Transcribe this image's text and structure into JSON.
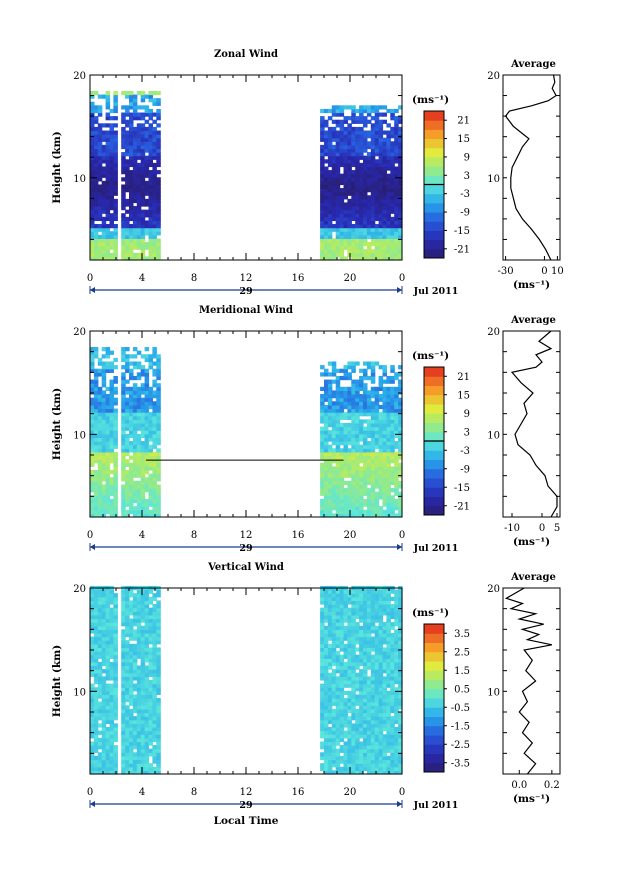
{
  "chart_data": [
    {
      "type": "heatmap",
      "title": "Zonal Wind",
      "ylabel": "Height (km)",
      "xlim": [
        0,
        24
      ],
      "ylim": [
        2,
        20
      ],
      "x_ticks": [
        "0",
        "4",
        "8",
        "12",
        "16",
        "20",
        "0"
      ],
      "y_ticks": [
        "20",
        "10"
      ],
      "date_day": "29",
      "date_month": "Jul 2011",
      "colorbar": {
        "unit": "(ms⁻¹)",
        "ticks": [
          "21",
          "15",
          "9",
          "3",
          "-3",
          "-9",
          "-15",
          "-21"
        ],
        "range": [
          -24,
          24
        ],
        "zero_line": true
      },
      "data_gaps_hours": [
        [
          2.2,
          2.55
        ],
        [
          5.3,
          17.6
        ]
      ],
      "profile": {
        "title": "Average",
        "xlabel": "(ms⁻¹)",
        "x_ticks": [
          "-30",
          "0",
          "10"
        ],
        "xlim": [
          -32,
          12
        ],
        "y_ticks": [
          "20",
          "10"
        ],
        "points": [
          [
            5,
            2
          ],
          [
            1,
            3
          ],
          [
            -4,
            4
          ],
          [
            -10,
            5
          ],
          [
            -17,
            6
          ],
          [
            -22,
            7
          ],
          [
            -24,
            8
          ],
          [
            -26,
            9
          ],
          [
            -26,
            10
          ],
          [
            -25,
            11
          ],
          [
            -21,
            12
          ],
          [
            -17,
            13
          ],
          [
            -12,
            13.8
          ],
          [
            -16,
            14.2
          ],
          [
            -24,
            15
          ],
          [
            -30,
            16
          ],
          [
            -27,
            16.5
          ],
          [
            -10,
            17
          ],
          [
            3,
            17.5
          ],
          [
            9,
            18
          ],
          [
            6,
            18.7
          ],
          [
            8,
            19.3
          ],
          [
            7,
            20
          ]
        ]
      }
    },
    {
      "type": "heatmap",
      "title": "Meridional Wind",
      "ylabel": "Height (km)",
      "xlim": [
        0,
        24
      ],
      "ylim": [
        2,
        20
      ],
      "x_ticks": [
        "0",
        "4",
        "8",
        "12",
        "16",
        "20",
        "0"
      ],
      "y_ticks": [
        "20",
        "10"
      ],
      "date_day": "29",
      "date_month": "Jul 2011",
      "colorbar": {
        "unit": "(ms⁻¹)",
        "ticks": [
          "21",
          "15",
          "9",
          "3",
          "-3",
          "-9",
          "-15",
          "-21"
        ],
        "range": [
          -24,
          24
        ],
        "zero_line": true
      },
      "data_gaps_hours": [
        [
          2.2,
          2.55
        ],
        [
          5.3,
          17.6
        ]
      ],
      "profile": {
        "title": "Average",
        "xlabel": "(ms⁻¹)",
        "x_ticks": [
          "-10",
          "0",
          "5"
        ],
        "xlim": [
          -13,
          6
        ],
        "y_ticks": [
          "20",
          "10"
        ],
        "points": [
          [
            3,
            2
          ],
          [
            5,
            3
          ],
          [
            5,
            4
          ],
          [
            2,
            5
          ],
          [
            1,
            6
          ],
          [
            -2,
            7
          ],
          [
            -4,
            8
          ],
          [
            -8,
            9
          ],
          [
            -9,
            10
          ],
          [
            -7,
            11
          ],
          [
            -5,
            12
          ],
          [
            -6,
            13
          ],
          [
            -3,
            14
          ],
          [
            -7,
            15
          ],
          [
            -10,
            16
          ],
          [
            -2,
            16.5
          ],
          [
            0,
            17
          ],
          [
            -2,
            17.7
          ],
          [
            3,
            18.3
          ],
          [
            -1,
            19
          ],
          [
            3,
            20
          ]
        ]
      }
    },
    {
      "type": "heatmap",
      "title": "Vertical Wind",
      "ylabel": "Height (km)",
      "xlabel": "Local Time",
      "xlim": [
        0,
        24
      ],
      "ylim": [
        2,
        20
      ],
      "x_ticks": [
        "0",
        "4",
        "8",
        "12",
        "16",
        "20",
        "0"
      ],
      "y_ticks": [
        "20",
        "10"
      ],
      "date_day": "29",
      "date_month": "Jul 2011",
      "colorbar": {
        "unit": "(ms⁻¹)",
        "ticks": [
          "3.5",
          "2.5",
          "1.5",
          "0.5",
          "-0.5",
          "-1.5",
          "-2.5",
          "-3.5"
        ],
        "range": [
          -4,
          4
        ],
        "zero_line": false
      },
      "data_gaps_hours": [
        [
          2.2,
          2.55
        ],
        [
          5.3,
          17.6
        ]
      ],
      "profile": {
        "title": "Average",
        "xlabel": "(ms⁻¹)",
        "x_ticks": [
          "0.0",
          "0.2"
        ],
        "xlim": [
          -0.1,
          0.25
        ],
        "y_ticks": [
          "20",
          "10"
        ],
        "points": [
          [
            0.05,
            2
          ],
          [
            0.1,
            3
          ],
          [
            0.03,
            4
          ],
          [
            0.08,
            5
          ],
          [
            0.02,
            6
          ],
          [
            0.06,
            7
          ],
          [
            0.0,
            8
          ],
          [
            0.05,
            9
          ],
          [
            0.02,
            10
          ],
          [
            0.1,
            11
          ],
          [
            0.04,
            12
          ],
          [
            0.08,
            13
          ],
          [
            0.03,
            14
          ],
          [
            0.2,
            14.5
          ],
          [
            0.05,
            15
          ],
          [
            0.12,
            15.5
          ],
          [
            0.02,
            16
          ],
          [
            0.15,
            16.5
          ],
          [
            0.0,
            17
          ],
          [
            0.1,
            17.5
          ],
          [
            -0.05,
            18
          ],
          [
            0.02,
            18.5
          ],
          [
            -0.08,
            19
          ],
          [
            0.03,
            20
          ]
        ]
      }
    }
  ]
}
